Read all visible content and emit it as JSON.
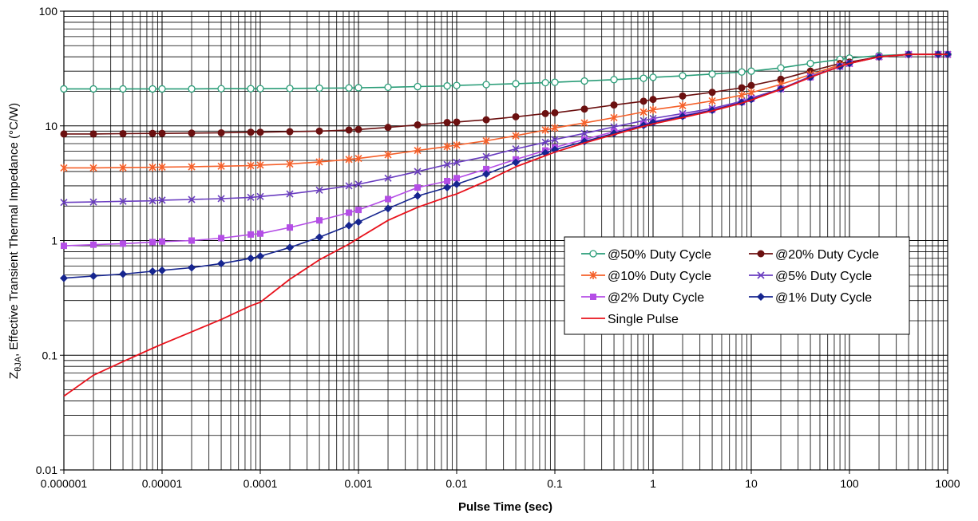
{
  "chart_data": {
    "type": "line",
    "xscale": "log",
    "yscale": "log",
    "xlim": [
      1e-06,
      1000
    ],
    "ylim": [
      0.01,
      100
    ],
    "grid": true,
    "legend_position": "inside-right",
    "xlabel": "Pulse Time (sec)",
    "ylabel_prefix": "Z",
    "ylabel_sub": "θJA",
    "ylabel_rest": ", Effective Transient Thermal Impedance (°C/W)",
    "x_ticks": [
      {
        "v": 1e-06,
        "label": "0.000001"
      },
      {
        "v": 1e-05,
        "label": "0.00001"
      },
      {
        "v": 0.0001,
        "label": "0.0001"
      },
      {
        "v": 0.001,
        "label": "0.001"
      },
      {
        "v": 0.01,
        "label": "0.01"
      },
      {
        "v": 0.1,
        "label": "0.1"
      },
      {
        "v": 1,
        "label": "1"
      },
      {
        "v": 10,
        "label": "10"
      },
      {
        "v": 100,
        "label": "100"
      },
      {
        "v": 1000,
        "label": "1000"
      }
    ],
    "y_ticks": [
      {
        "v": 0.01,
        "label": "0.01"
      },
      {
        "v": 0.1,
        "label": "0.1"
      },
      {
        "v": 1,
        "label": "1"
      },
      {
        "v": 10,
        "label": "10"
      },
      {
        "v": 100,
        "label": "100"
      }
    ],
    "series": [
      {
        "name": "@50% Duty Cycle",
        "color": "#2a9d78",
        "marker": "circle-open",
        "x": [
          1e-06,
          2e-06,
          4e-06,
          8e-06,
          1e-05,
          2e-05,
          4e-05,
          8e-05,
          0.0001,
          0.0002,
          0.0004,
          0.0008,
          0.001,
          0.002,
          0.004,
          0.008,
          0.01,
          0.02,
          0.04,
          0.08,
          0.1,
          0.2,
          0.4,
          0.8,
          1,
          2,
          4,
          8,
          10,
          20,
          40,
          80,
          100,
          200,
          400,
          800,
          1000
        ],
        "y": [
          21,
          21,
          21,
          21,
          21,
          21,
          21.1,
          21.1,
          21.1,
          21.2,
          21.3,
          21.4,
          21.5,
          21.7,
          22,
          22.3,
          22.5,
          22.9,
          23.3,
          23.8,
          24,
          24.6,
          25.3,
          26,
          26.5,
          27.3,
          28.3,
          29.5,
          30,
          32,
          35,
          38,
          39,
          41,
          42,
          42,
          42
        ]
      },
      {
        "name": "@20% Duty Cycle",
        "color": "#6b1010",
        "marker": "circle",
        "x": [
          1e-06,
          2e-06,
          4e-06,
          8e-06,
          1e-05,
          2e-05,
          4e-05,
          8e-05,
          0.0001,
          0.0002,
          0.0004,
          0.0008,
          0.001,
          0.002,
          0.004,
          0.008,
          0.01,
          0.02,
          0.04,
          0.08,
          0.1,
          0.2,
          0.4,
          0.8,
          1,
          2,
          4,
          8,
          10,
          20,
          40,
          80,
          100,
          200,
          400,
          800,
          1000
        ],
        "y": [
          8.5,
          8.5,
          8.55,
          8.6,
          8.6,
          8.65,
          8.7,
          8.8,
          8.8,
          8.9,
          9,
          9.2,
          9.3,
          9.7,
          10.2,
          10.7,
          10.8,
          11.3,
          12,
          12.8,
          13,
          14,
          15.2,
          16.4,
          17,
          18.2,
          19.6,
          21.5,
          22.5,
          25.5,
          30,
          35,
          36,
          40,
          42,
          42,
          42
        ]
      },
      {
        "name": "@10% Duty Cycle",
        "color": "#f5602a",
        "marker": "asterisk",
        "x": [
          1e-06,
          2e-06,
          4e-06,
          8e-06,
          1e-05,
          2e-05,
          4e-05,
          8e-05,
          0.0001,
          0.0002,
          0.0004,
          0.0008,
          0.001,
          0.002,
          0.004,
          0.008,
          0.01,
          0.02,
          0.04,
          0.08,
          0.1,
          0.2,
          0.4,
          0.8,
          1,
          2,
          4,
          8,
          10,
          20,
          40,
          80,
          100,
          200,
          400,
          800,
          1000
        ],
        "y": [
          4.3,
          4.3,
          4.32,
          4.35,
          4.37,
          4.4,
          4.45,
          4.5,
          4.55,
          4.65,
          4.85,
          5.1,
          5.2,
          5.6,
          6.1,
          6.6,
          6.8,
          7.4,
          8.2,
          9.2,
          9.6,
          10.6,
          11.8,
          13.2,
          13.8,
          15,
          16.5,
          18.5,
          19.5,
          23,
          28,
          34,
          35,
          40,
          42,
          42,
          42
        ]
      },
      {
        "name": "@5% Duty Cycle",
        "color": "#6a3dc0",
        "marker": "x",
        "x": [
          1e-06,
          2e-06,
          4e-06,
          8e-06,
          1e-05,
          2e-05,
          4e-05,
          8e-05,
          0.0001,
          0.0002,
          0.0004,
          0.0008,
          0.001,
          0.002,
          0.004,
          0.008,
          0.01,
          0.02,
          0.04,
          0.08,
          0.1,
          0.2,
          0.4,
          0.8,
          1,
          2,
          4,
          8,
          10,
          20,
          40,
          80,
          100,
          200,
          400,
          800,
          1000
        ],
        "y": [
          2.15,
          2.17,
          2.2,
          2.22,
          2.25,
          2.28,
          2.32,
          2.38,
          2.42,
          2.55,
          2.75,
          3,
          3.1,
          3.5,
          4,
          4.6,
          4.8,
          5.4,
          6.3,
          7.2,
          7.6,
          8.6,
          9.8,
          11.1,
          11.6,
          12.8,
          14.2,
          16.4,
          17.5,
          21,
          27,
          33,
          35,
          40,
          42,
          42,
          42
        ]
      },
      {
        "name": "@2% Duty Cycle",
        "color": "#b44ee6",
        "marker": "square",
        "x": [
          1e-06,
          2e-06,
          4e-06,
          8e-06,
          1e-05,
          2e-05,
          4e-05,
          8e-05,
          0.0001,
          0.0002,
          0.0004,
          0.0008,
          0.001,
          0.002,
          0.004,
          0.008,
          0.01,
          0.02,
          0.04,
          0.08,
          0.1,
          0.2,
          0.4,
          0.8,
          1,
          2,
          4,
          8,
          10,
          20,
          40,
          80,
          100,
          200,
          400,
          800,
          1000
        ],
        "y": [
          0.9,
          0.92,
          0.94,
          0.97,
          0.98,
          1,
          1.05,
          1.13,
          1.15,
          1.3,
          1.5,
          1.75,
          1.85,
          2.3,
          2.9,
          3.3,
          3.5,
          4.2,
          5.1,
          6.1,
          6.5,
          7.6,
          8.9,
          10.3,
          10.9,
          12.3,
          13.8,
          16.1,
          17.2,
          21,
          26.5,
          33,
          35,
          40,
          42,
          42,
          42
        ]
      },
      {
        "name": "@1% Duty Cycle",
        "color": "#16258f",
        "marker": "diamond",
        "x": [
          1e-06,
          2e-06,
          4e-06,
          8e-06,
          1e-05,
          2e-05,
          4e-05,
          8e-05,
          0.0001,
          0.0002,
          0.0004,
          0.0008,
          0.001,
          0.002,
          0.004,
          0.008,
          0.01,
          0.02,
          0.04,
          0.08,
          0.1,
          0.2,
          0.4,
          0.8,
          1,
          2,
          4,
          8,
          10,
          20,
          40,
          80,
          100,
          200,
          400,
          800,
          1000
        ],
        "y": [
          0.47,
          0.49,
          0.51,
          0.54,
          0.55,
          0.58,
          0.63,
          0.7,
          0.73,
          0.87,
          1.07,
          1.35,
          1.45,
          1.9,
          2.45,
          2.9,
          3.1,
          3.8,
          4.8,
          5.8,
          6.2,
          7.3,
          8.6,
          10.1,
          10.7,
          12.1,
          13.7,
          16,
          17,
          21,
          26.5,
          33,
          35,
          40,
          42,
          42,
          42
        ]
      },
      {
        "name": "Single Pulse",
        "color": "#e8121c",
        "marker": "none",
        "x": [
          1e-06,
          2e-06,
          4e-06,
          8e-06,
          1e-05,
          2e-05,
          4e-05,
          8e-05,
          0.0001,
          0.0002,
          0.0004,
          0.0008,
          0.001,
          0.002,
          0.004,
          0.008,
          0.01,
          0.02,
          0.04,
          0.08,
          0.1,
          0.2,
          0.4,
          0.8,
          1,
          2,
          4,
          8,
          10,
          20,
          40,
          80,
          100,
          200,
          400,
          800,
          1000
        ],
        "y": [
          0.044,
          0.067,
          0.088,
          0.115,
          0.125,
          0.16,
          0.205,
          0.27,
          0.29,
          0.46,
          0.68,
          0.93,
          1.05,
          1.5,
          1.95,
          2.4,
          2.55,
          3.3,
          4.4,
          5.5,
          5.9,
          7.1,
          8.4,
          9.9,
          10.4,
          11.8,
          13.5,
          15.8,
          16.8,
          20.8,
          26.5,
          33,
          35,
          40,
          42,
          42,
          42
        ]
      }
    ]
  }
}
